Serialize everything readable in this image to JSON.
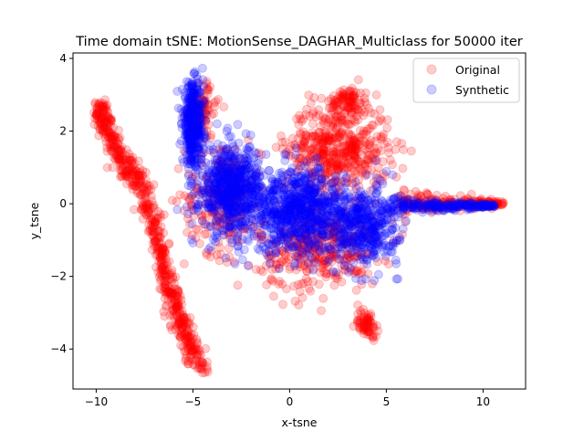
{
  "chart_data": {
    "type": "scatter",
    "title": "Time domain tSNE: MotionSense_DAGHAR_Multiclass for 50000 iter",
    "xlabel": "x-tsne",
    "ylabel": "y_tsne",
    "xlim": [
      -11.2,
      12.2
    ],
    "ylim": [
      -5.1,
      4.15
    ],
    "xticks": [
      -10,
      -5,
      0,
      5,
      10
    ],
    "yticks": [
      -4,
      -2,
      0,
      2,
      4
    ],
    "grid": false,
    "legend_position": "top-right",
    "series": [
      {
        "name": "Original",
        "color": "#ff0000",
        "alpha": 0.2,
        "clusters": [
          {
            "shape": "band",
            "points": [
              [
                -9.9,
                2.7
              ],
              [
                -9.5,
                2.2
              ],
              [
                -8.8,
                1.3
              ],
              [
                -7.8,
                0.6
              ],
              [
                -7.0,
                -0.6
              ],
              [
                -6.5,
                -1.8
              ],
              [
                -6.0,
                -2.8
              ],
              [
                -5.4,
                -3.5
              ],
              [
                -4.5,
                -4.6
              ]
            ],
            "width": 0.45,
            "n": 700
          },
          {
            "shape": "blob",
            "cx": -3.5,
            "cy": 0.2,
            "sx": 1.6,
            "sy": 1.3,
            "n": 220
          },
          {
            "shape": "blob",
            "cx": 2.5,
            "cy": 1.5,
            "sx": 2.2,
            "sy": 1.0,
            "n": 500
          },
          {
            "shape": "blob",
            "cx": 1.5,
            "cy": -1.2,
            "sx": 2.6,
            "sy": 1.0,
            "n": 380
          },
          {
            "shape": "blob",
            "cx": 4.0,
            "cy": -3.3,
            "sx": 0.5,
            "sy": 0.3,
            "n": 70
          },
          {
            "shape": "blob",
            "cx": 3.0,
            "cy": 2.8,
            "sx": 0.7,
            "sy": 0.35,
            "n": 90
          },
          {
            "shape": "tail",
            "x0": 5.5,
            "x1": 11.1,
            "y0": 0.0,
            "spread": 0.35,
            "n": 220
          },
          {
            "shape": "blob",
            "cx": -4.5,
            "cy": 2.6,
            "sx": 0.6,
            "sy": 0.6,
            "n": 80
          }
        ]
      },
      {
        "name": "Synthetic",
        "color": "#0000ff",
        "alpha": 0.2,
        "clusters": [
          {
            "shape": "blob",
            "cx": -5.0,
            "cy": 2.2,
            "sx": 0.45,
            "sy": 0.9,
            "n": 420
          },
          {
            "shape": "blob",
            "cx": -3.0,
            "cy": 0.4,
            "sx": 1.4,
            "sy": 1.0,
            "n": 650
          },
          {
            "shape": "blob",
            "cx": 0.5,
            "cy": -0.2,
            "sx": 2.0,
            "sy": 0.95,
            "n": 750
          },
          {
            "shape": "blob",
            "cx": 3.8,
            "cy": -0.6,
            "sx": 1.5,
            "sy": 0.9,
            "n": 420
          },
          {
            "shape": "tail",
            "x0": 5.0,
            "x1": 10.6,
            "y0": -0.05,
            "spread": 0.25,
            "n": 220
          }
        ]
      }
    ]
  }
}
